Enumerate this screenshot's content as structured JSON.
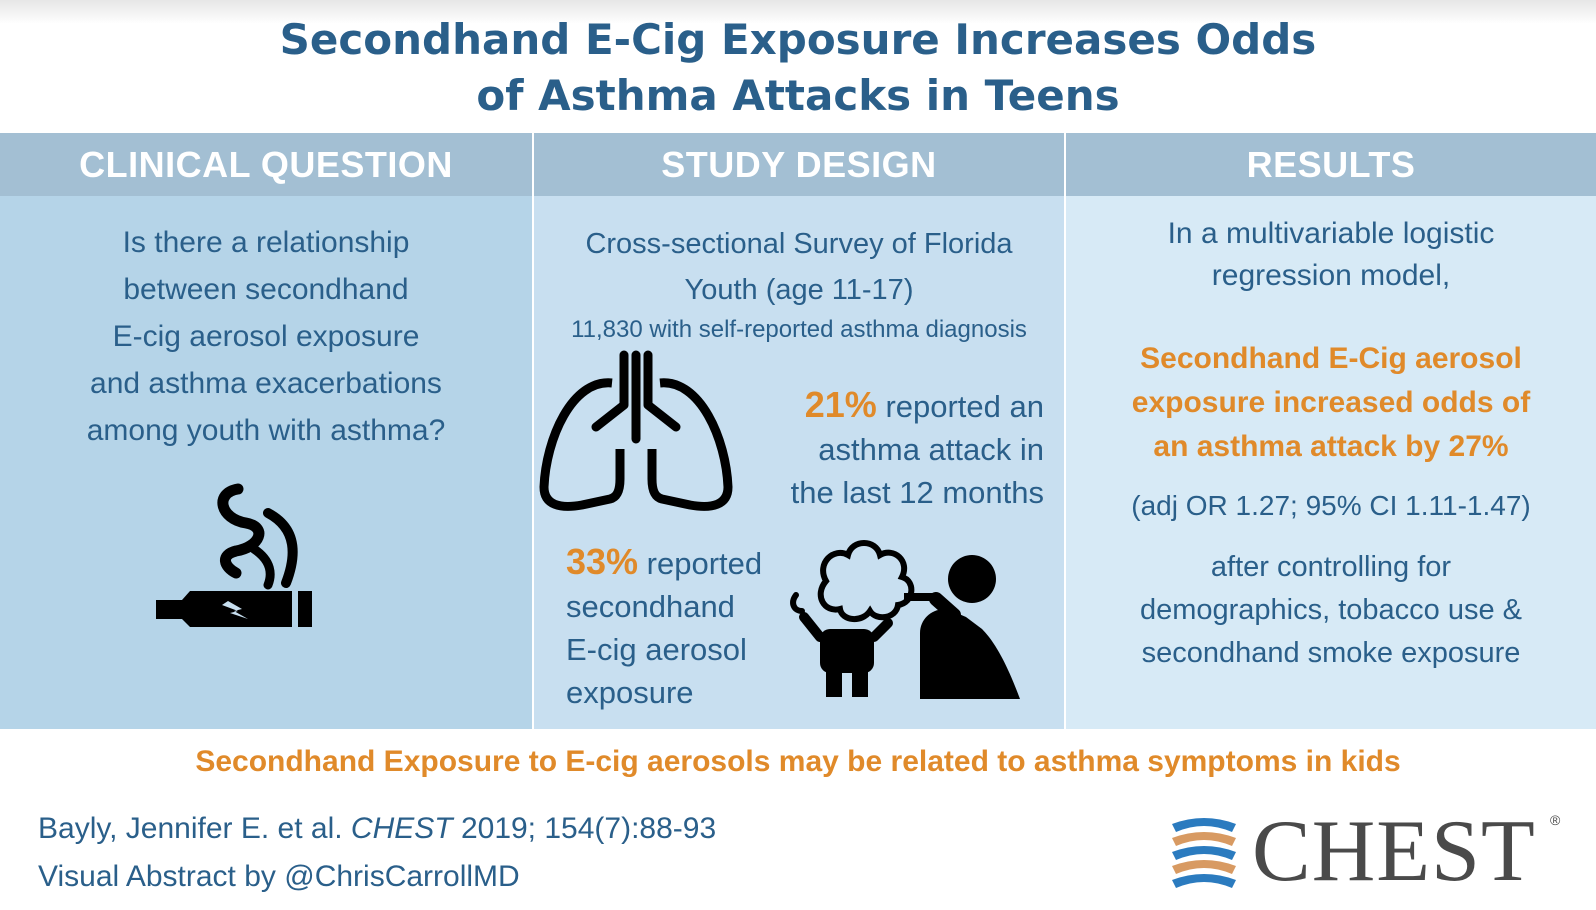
{
  "title": {
    "line1": "Secondhand E-Cig Exposure Increases Odds",
    "line2": "of Asthma Attacks in Teens"
  },
  "panels": {
    "clinical_question": {
      "header": "CLINICAL QUESTION",
      "lines": [
        "Is there a relationship",
        "between secondhand",
        "E-cig aerosol exposure",
        "and asthma exacerbations",
        "among youth with asthma?"
      ],
      "icon": "e-cigarette-icon"
    },
    "study_design": {
      "header": "STUDY DESIGN",
      "line1a": "Cross-sectional Survey of Florida",
      "line1b": "Youth (age 11-17)",
      "line2": "11,830 with self-reported asthma diagnosis",
      "stat1_value": "21%",
      "stat1_text_a": " reported an",
      "stat1_text_b": "asthma attack in",
      "stat1_text_c": "the last 12 months",
      "stat2_value": "33%",
      "stat2_text_a": " reported",
      "stat2_text_b": "secondhand",
      "stat2_text_c": "E-cig aerosol",
      "stat2_text_d": "exposure",
      "icons": [
        "lungs-icon",
        "vaping-exposure-icon"
      ]
    },
    "results": {
      "header": "RESULTS",
      "intro_a": "In a multivariable logistic",
      "intro_b": "regression model,",
      "finding_a": "Secondhand E-Cig aerosol",
      "finding_b": "exposure increased odds of",
      "finding_c": "an asthma attack by 27%",
      "stats": "(adj OR 1.27; 95% CI 1.11-1.47)",
      "control_a": "after controlling for",
      "control_b": "demographics, tobacco use &",
      "control_c": "secondhand smoke exposure"
    }
  },
  "conclusion": "Secondhand Exposure to E-cig aerosols may be related to asthma symptoms in kids",
  "citation": {
    "authors": "Bayly, Jennifer E. et al. ",
    "journal": "CHEST",
    "details": " 2019; 154(7):88-93"
  },
  "credit": "Visual Abstract by @ChrisCarrollMD",
  "logo": {
    "word": "CHEST",
    "mark": "®"
  },
  "colors": {
    "title": "#2a5f8a",
    "accent": "#e08a2a",
    "panel_header": "#a3bfd3",
    "panel1": "#b5d4e8",
    "panel2": "#c8dff0",
    "panel3": "#d7eaf6"
  }
}
